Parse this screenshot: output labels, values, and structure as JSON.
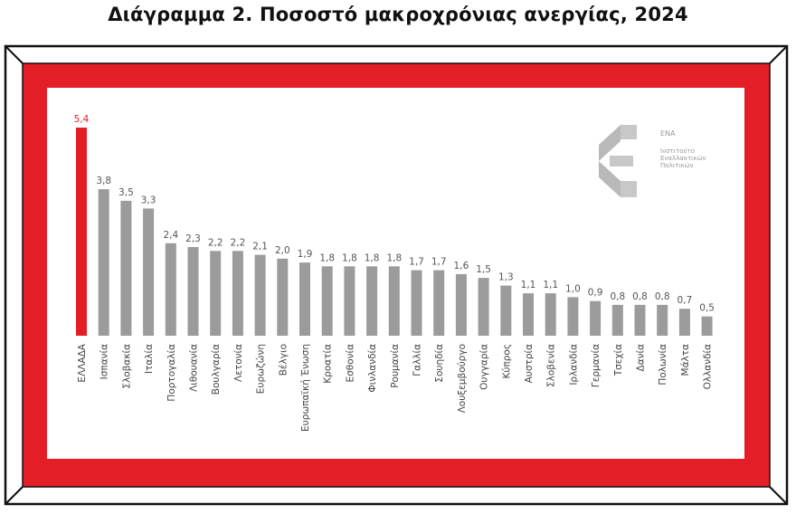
{
  "title": "Διάγραμμα 2. Ποσοστό μακροχρόνιας ανεργίας, 2024",
  "logo": {
    "abbr": "ΕΝΑ",
    "line1": "Ινστιτούτο",
    "line2": "Εναλλακτικών",
    "line3": "Πολιτικών"
  },
  "colors": {
    "frame": "#e41e26",
    "bar": "#9b9b9b",
    "highlight": "#e41e26"
  },
  "chart_data": {
    "type": "bar",
    "categories": [
      "ΕΛΛΑΔΑ",
      "Ισπανία",
      "Σλοβακία",
      "Ιταλία",
      "Πορτογαλία",
      "Λιθουανία",
      "Βουλγαρία",
      "Λετονία",
      "Ευρωζώνη",
      "Βέλγιο",
      "Ευρωπαϊκή Ένωση",
      "Κροατία",
      "Εσθονία",
      "Φινλανδία",
      "Ρουμανία",
      "Γαλλία",
      "Σουηδία",
      "Λουξεμβούργο",
      "Ουγγαρία",
      "Κύπρος",
      "Αυστρία",
      "Σλοβενία",
      "Ιρλανδία",
      "Γερμανία",
      "Τσεχία",
      "Δανία",
      "Πολωνία",
      "Μάλτα",
      "Ολλανδία"
    ],
    "values": [
      5.4,
      3.8,
      3.5,
      3.3,
      2.4,
      2.3,
      2.2,
      2.2,
      2.1,
      2.0,
      1.9,
      1.8,
      1.8,
      1.8,
      1.8,
      1.7,
      1.7,
      1.6,
      1.5,
      1.3,
      1.1,
      1.1,
      1.0,
      0.9,
      0.8,
      0.8,
      0.8,
      0.7,
      0.5
    ],
    "value_labels": [
      "5,4",
      "3,8",
      "3,5",
      "3,3",
      "2,4",
      "2,3",
      "2,2",
      "2,2",
      "2,1",
      "2,0",
      "1,9",
      "1,8",
      "1,8",
      "1,8",
      "1,8",
      "1,7",
      "1,7",
      "1,6",
      "1,5",
      "1,3",
      "1,1",
      "1,1",
      "1,0",
      "0,9",
      "0,8",
      "0,8",
      "0,8",
      "0,7",
      "0,5"
    ],
    "highlight_category": "ΕΛΛΑΔΑ",
    "ylim": [
      0,
      5.4
    ],
    "grid": false,
    "legend": "none"
  }
}
